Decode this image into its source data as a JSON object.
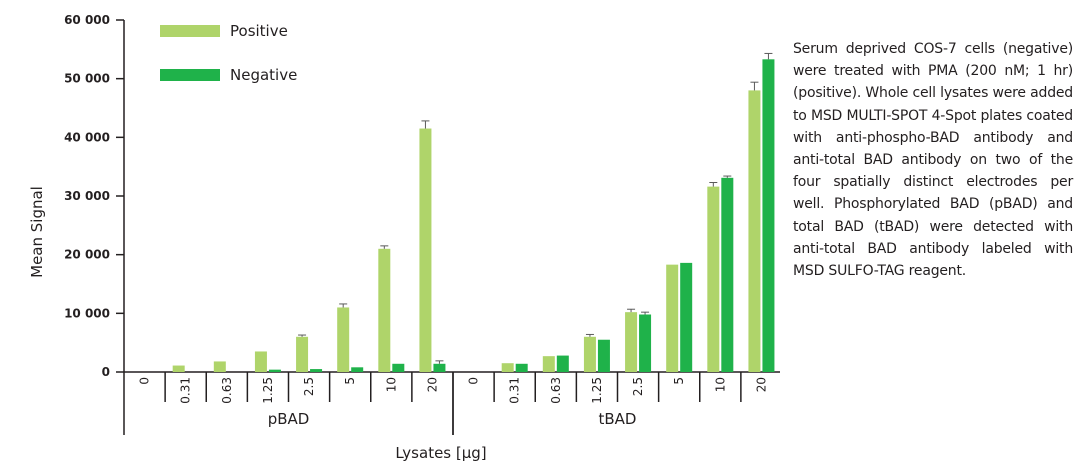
{
  "chart_data": {
    "type": "bar",
    "title": "",
    "xlabel": "Lysates [µg]",
    "ylabel": "Mean Signal",
    "ylim": [
      0,
      60000
    ],
    "yticks": [
      "0",
      "10 000",
      "20 000",
      "30 000",
      "40 000",
      "50 000",
      "60 000"
    ],
    "groups": [
      "pBAD",
      "tBAD"
    ],
    "categories": [
      "0",
      "0.31",
      "0.63",
      "1.25",
      "2.5",
      "5",
      "10",
      "20"
    ],
    "series": [
      {
        "name": "Positive",
        "color": "#afd46a",
        "groups": [
          {
            "values": [
              0,
              1100,
              1800,
              3500,
              6000,
              11000,
              21000,
              41500
            ],
            "errors": [
              0,
              0,
              0,
              0,
              300,
              600,
              500,
              1300
            ]
          },
          {
            "values": [
              0,
              1500,
              2700,
              6000,
              10200,
              18300,
              31600,
              48000
            ],
            "errors": [
              0,
              0,
              0,
              400,
              500,
              0,
              700,
              1400
            ]
          }
        ]
      },
      {
        "name": "Negative",
        "color": "#1fb24a",
        "groups": [
          {
            "values": [
              0,
              0,
              0,
              400,
              500,
              800,
              1400,
              1400
            ],
            "errors": [
              0,
              0,
              0,
              0,
              0,
              0,
              0,
              500
            ]
          },
          {
            "values": [
              0,
              1400,
              2800,
              5500,
              9800,
              18600,
              33100,
              53300
            ],
            "errors": [
              0,
              0,
              0,
              0,
              400,
              0,
              300,
              1000
            ]
          }
        ]
      }
    ],
    "legend": "top-left",
    "grid": false
  },
  "caption": "Serum deprived COS-7 cells (negative) were treated with PMA (200 nM; 1 hr)(positive). Whole cell lysates were added to MSD MULTI-SPOT 4-Spot plates coated with anti-phospho-BAD antibody and anti-total BAD antibody on two of the four spatially distinct electrodes per well. Phosphorylated BAD (pBAD) and total BAD (tBAD) were detected with anti-total BAD antibody labeled with MSD SULFO-TAG reagent."
}
